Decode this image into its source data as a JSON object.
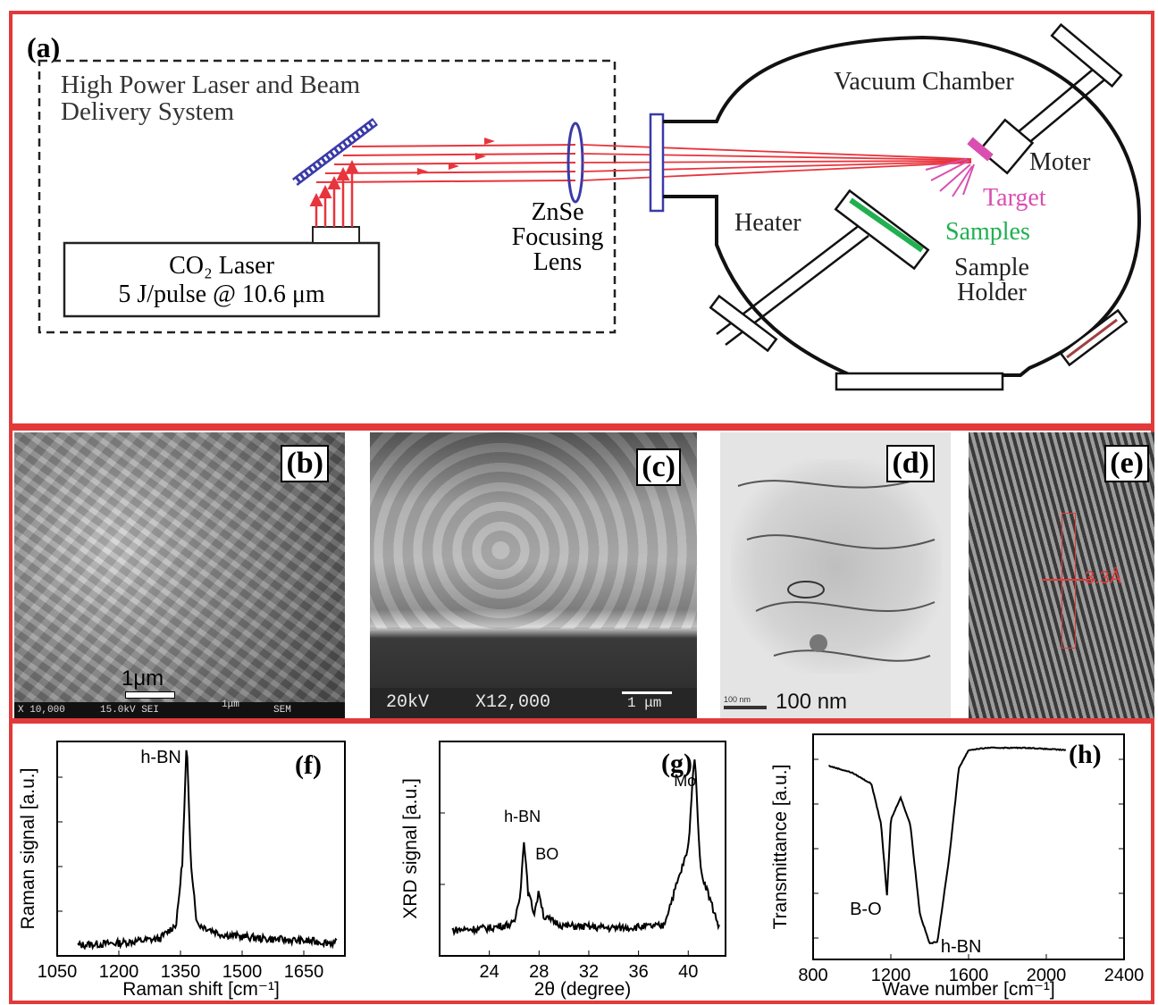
{
  "panel_a": {
    "label": "(a)",
    "system_label_line1": "High Power Laser and Beam",
    "system_label_line2": "Delivery System",
    "laser_line1": "CO₂ Laser",
    "laser_line2": "5 J/pulse @ 10.6 μm",
    "lens_line1": "ZnSe",
    "lens_line2": "Focusing",
    "lens_line3": "Lens",
    "chamber_label": "Vacuum Chamber",
    "motor_label": "Moter",
    "target_label": "Target",
    "samples_label": "Samples",
    "heater_label": "Heater",
    "holder_line1": "Sample",
    "holder_line2": "Holder",
    "colors": {
      "laser": "#e8343c",
      "target": "#d94fb0",
      "samples": "#20b050",
      "optics": "#3a3aa8"
    }
  },
  "panel_b": {
    "label": "(b)",
    "scale": "1μm",
    "footer_left": "X 10,000",
    "footer_mid": "15.0kV SEI",
    "footer_scale": "1μm",
    "footer_right": "SEM"
  },
  "panel_c": {
    "label": "(c)",
    "footer_kv": "20kV",
    "footer_mag": "X12,000",
    "scale": "1 μm"
  },
  "panel_d": {
    "label": "(d)",
    "scale_small": "100 nm",
    "scale": "100 nm"
  },
  "panel_e": {
    "label": "(e)",
    "spacing": "3.3Å"
  },
  "chart_data": [
    {
      "type": "line",
      "panel": "(f)",
      "xlabel": "Raman shift [cm⁻¹]",
      "ylabel": "Raman signal [a.u.]",
      "xlim": [
        1050,
        1750
      ],
      "xticks": [
        1050,
        1200,
        1350,
        1500,
        1650
      ],
      "annotations": [
        {
          "text": "h-BN",
          "x": 1365
        }
      ],
      "series": [
        {
          "x": [
            1100,
            1200,
            1300,
            1340,
            1355,
            1365,
            1375,
            1390,
            1450,
            1550,
            1650,
            1730
          ],
          "y": [
            0.05,
            0.06,
            0.08,
            0.15,
            0.45,
            1.0,
            0.45,
            0.15,
            0.1,
            0.08,
            0.07,
            0.06
          ]
        }
      ]
    },
    {
      "type": "line",
      "panel": "(g)",
      "xlabel": "2θ (degree)",
      "ylabel": "XRD signal [a.u.]",
      "xlim": [
        20,
        43
      ],
      "xticks": [
        24,
        28,
        32,
        36,
        40
      ],
      "annotations": [
        {
          "text": "h-BN",
          "x": 26.8
        },
        {
          "text": "BO",
          "x": 28.0
        },
        {
          "text": "Mo",
          "x": 40.5
        }
      ],
      "series": [
        {
          "x": [
            21,
            24,
            26,
            26.5,
            26.8,
            27.1,
            27.6,
            28.0,
            28.4,
            30,
            34,
            38,
            40.0,
            40.5,
            41.0,
            42.5
          ],
          "y": [
            0.12,
            0.13,
            0.15,
            0.3,
            0.55,
            0.3,
            0.2,
            0.3,
            0.18,
            0.14,
            0.13,
            0.14,
            0.5,
            0.95,
            0.4,
            0.13
          ]
        }
      ]
    },
    {
      "type": "line",
      "panel": "(h)",
      "xlabel": "Wave number [cm⁻¹]",
      "ylabel": "Transmittance [a.u.]",
      "xlim": [
        800,
        2400
      ],
      "xticks": [
        800,
        1200,
        1600,
        2000,
        2400
      ],
      "annotations": [
        {
          "text": "B-O",
          "x": 1180
        },
        {
          "text": "h-BN",
          "x": 1420
        }
      ],
      "series": [
        {
          "x": [
            880,
            1000,
            1100,
            1150,
            1180,
            1200,
            1250,
            1300,
            1350,
            1400,
            1440,
            1500,
            1550,
            1600,
            1700,
            1900,
            2100
          ],
          "y": [
            0.86,
            0.83,
            0.78,
            0.6,
            0.28,
            0.62,
            0.72,
            0.6,
            0.2,
            0.07,
            0.08,
            0.45,
            0.85,
            0.93,
            0.94,
            0.94,
            0.93
          ]
        }
      ]
    }
  ]
}
